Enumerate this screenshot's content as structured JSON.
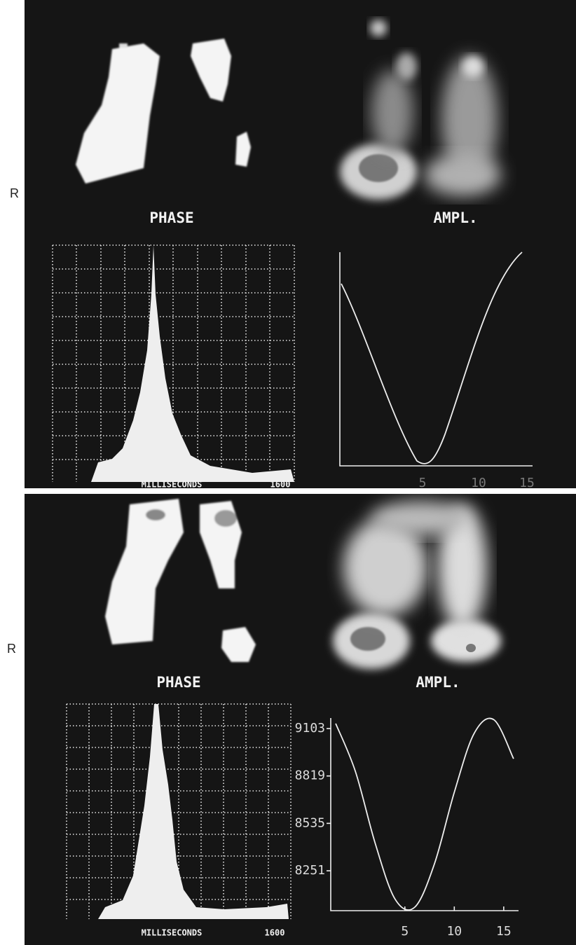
{
  "panels": [
    {
      "side_label": "R",
      "phase_label": "PHASE",
      "amplitude_label": "AMPL.",
      "histogram": {
        "x_label": "MILLISECONDS",
        "x_end_label": "1600"
      },
      "curve": {
        "xtick_labels": [
          "5",
          "10",
          "15"
        ]
      }
    },
    {
      "side_label": "R",
      "phase_label": "PHASE",
      "amplitude_label": "AMPL.",
      "histogram": {
        "x_label": "MILLISECONDS",
        "x_end_label": "1600"
      },
      "curve": {
        "x": [
          -2,
          0,
          2,
          4,
          6,
          8,
          10,
          12,
          14,
          16
        ],
        "values": [
          9133,
          8845,
          8415,
          8082,
          8033,
          8294,
          8721,
          9073,
          9156,
          8922
        ],
        "xlim": [
          -2.5,
          16.5
        ],
        "ylim": [
          8012,
          9166
        ],
        "xticks": [
          5,
          10,
          15
        ],
        "yticks": [
          8251,
          8535,
          8819,
          9103
        ]
      }
    }
  ]
}
